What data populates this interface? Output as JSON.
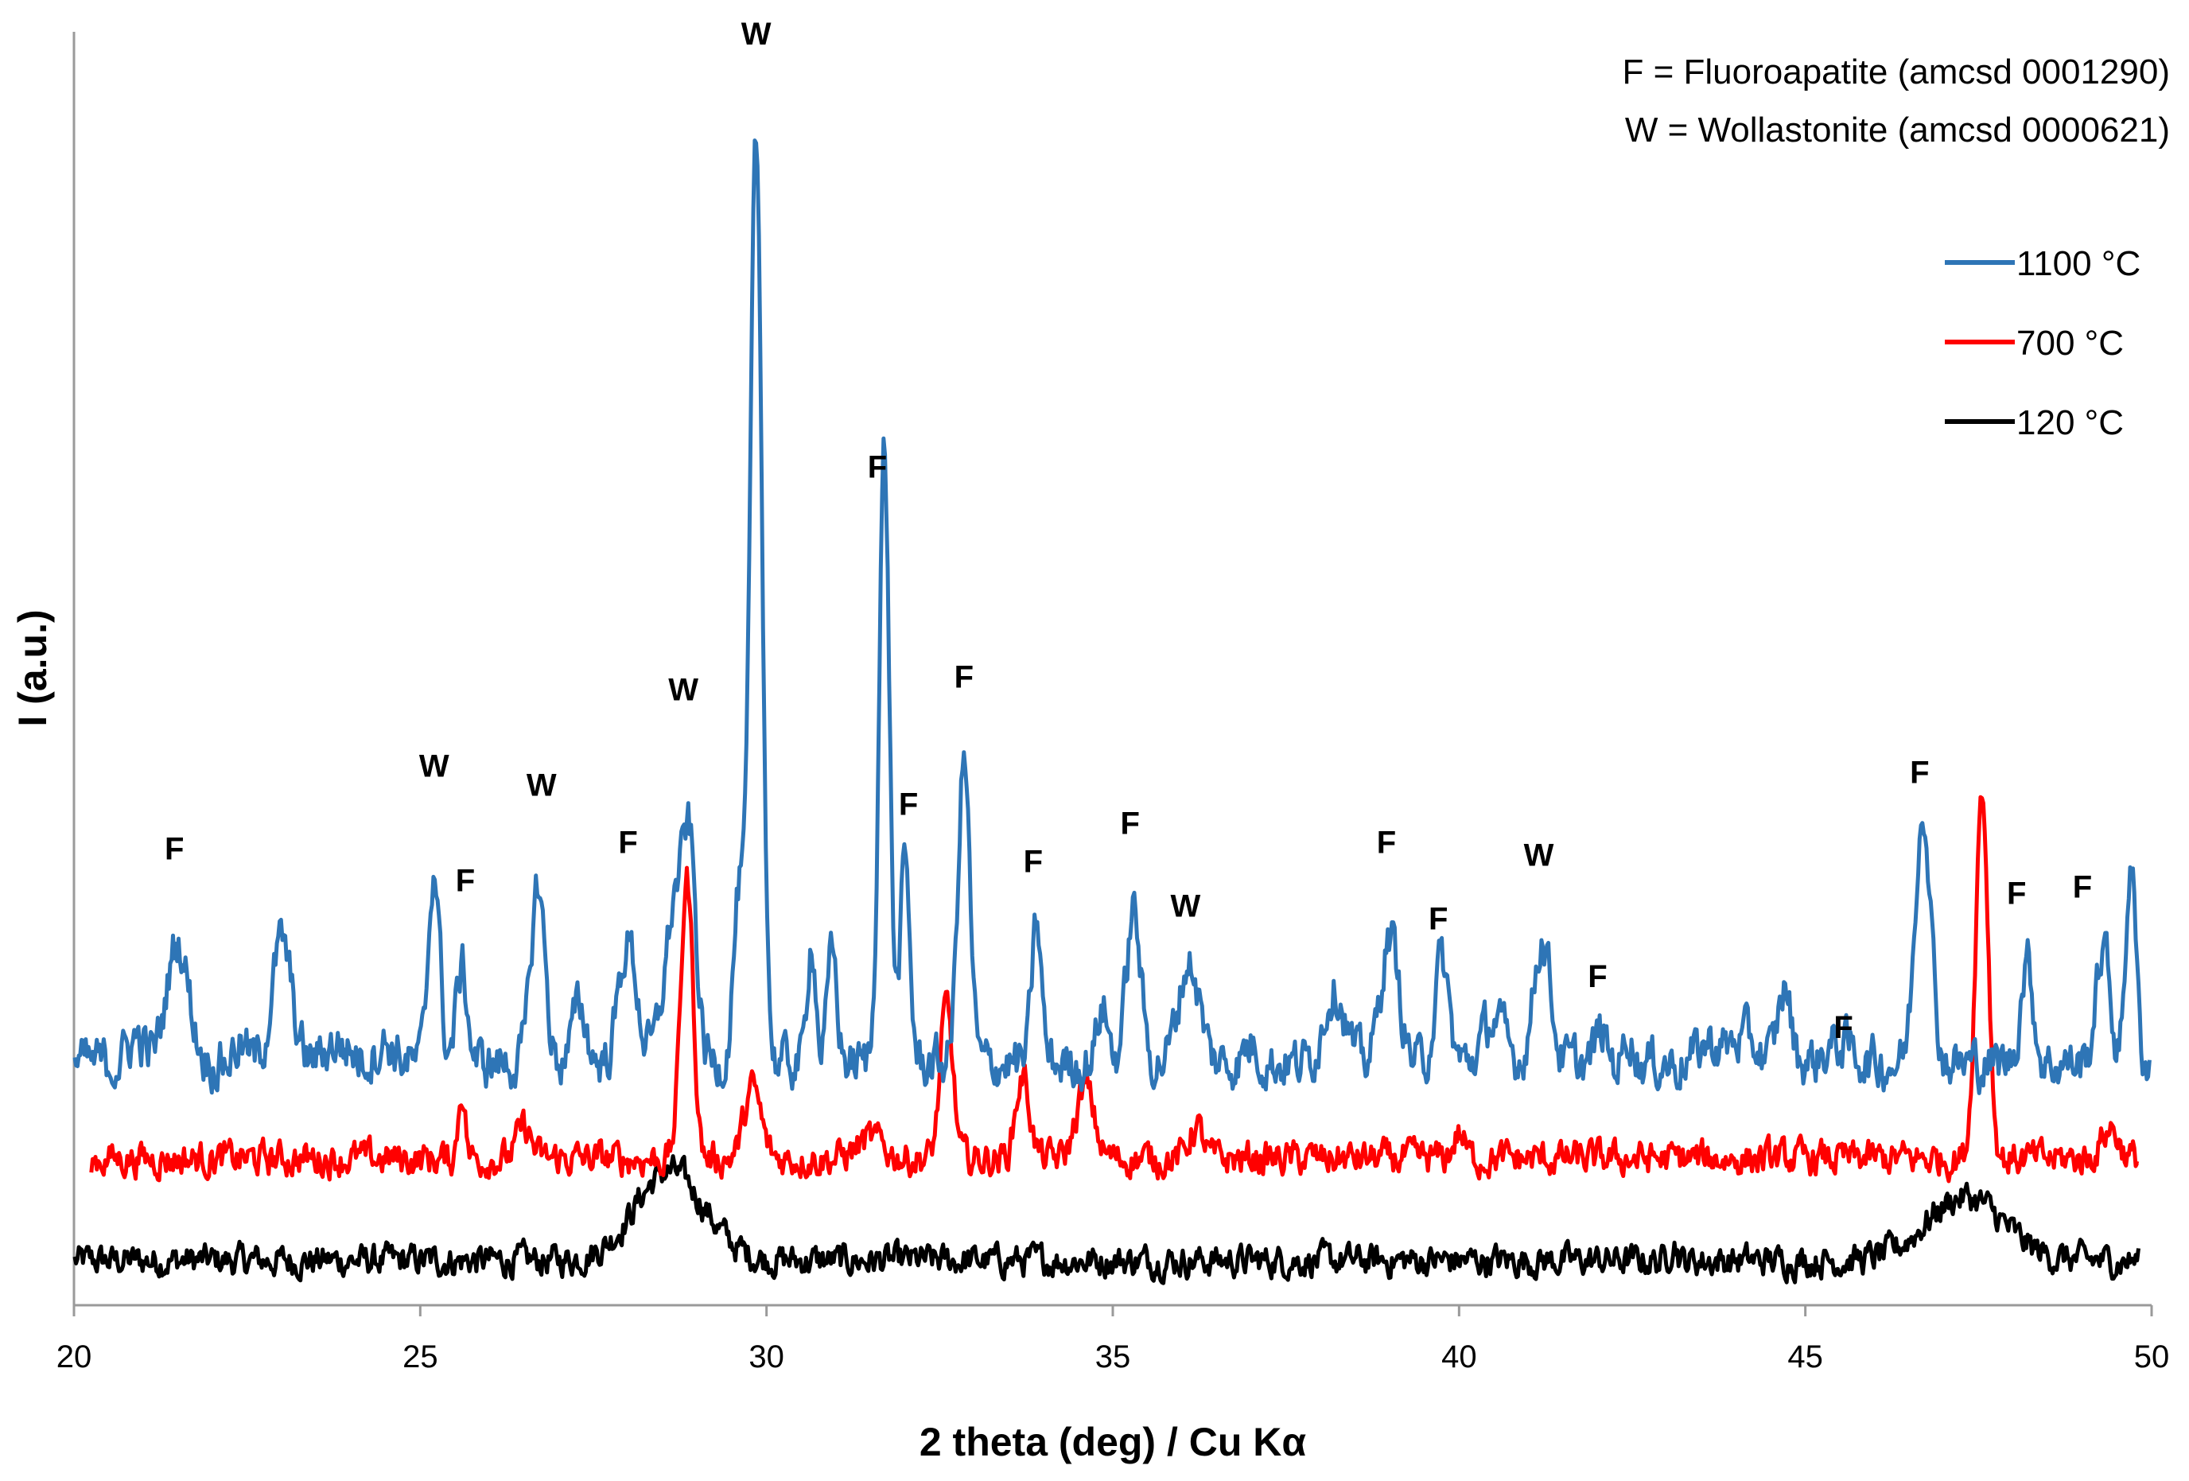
{
  "chart_data": {
    "type": "line",
    "title": "",
    "xlabel": "2 theta (deg) / Cu Kα",
    "ylabel": "I (a.u.)",
    "xlim": [
      20,
      50
    ],
    "ylim": [
      0,
      100
    ],
    "x_ticks": [
      20,
      25,
      30,
      35,
      40,
      45,
      50
    ],
    "x_tick_labels": [
      "20",
      "25",
      "30",
      "35",
      "40",
      "45",
      "50"
    ],
    "grid": false,
    "legend_position": "right",
    "notes": [
      "F = Fluoroapatite (amcsd 0001290)",
      "W = Wollastonite (amcsd 0000621)"
    ],
    "series": [
      {
        "name": "1100 °C",
        "color": "#2e75b6",
        "baseline": 19,
        "noise": 1.6,
        "peaks": [
          [
            20.9,
            2,
            0.12
          ],
          [
            21.5,
            9.5,
            0.16
          ],
          [
            22.4,
            1.5,
            0.1
          ],
          [
            23.0,
            9.5,
            0.14
          ],
          [
            23.8,
            1.5,
            0.2
          ],
          [
            24.5,
            1.5,
            0.15
          ],
          [
            25.2,
            15.5,
            0.08
          ],
          [
            25.6,
            7.5,
            0.08
          ],
          [
            26.7,
            14,
            0.1
          ],
          [
            27.3,
            4.5,
            0.1
          ],
          [
            28.0,
            9.5,
            0.13
          ],
          [
            28.7,
            13,
            0.16
          ],
          [
            28.9,
            12,
            0.09
          ],
          [
            29.6,
            13,
            0.08
          ],
          [
            29.85,
            72,
            0.085
          ],
          [
            30.65,
            10,
            0.06
          ],
          [
            30.95,
            8.5,
            0.07
          ],
          [
            31.7,
            48,
            0.075
          ],
          [
            32.0,
            15.5,
            0.07
          ],
          [
            32.85,
            24,
            0.085
          ],
          [
            33.9,
            11,
            0.07
          ],
          [
            34.85,
            4.5,
            0.08
          ],
          [
            35.3,
            12,
            0.1
          ],
          [
            36.1,
            8,
            0.15
          ],
          [
            37.0,
            1.5,
            0.1
          ],
          [
            38.2,
            6,
            0.15
          ],
          [
            39.0,
            10,
            0.13
          ],
          [
            39.75,
            8,
            0.1
          ],
          [
            40.5,
            3.5,
            0.15
          ],
          [
            41.2,
            10,
            0.12
          ],
          [
            42.05,
            2.5,
            0.08
          ],
          [
            42.45,
            2.5,
            0.06
          ],
          [
            43.6,
            1.5,
            0.15
          ],
          [
            44.1,
            2,
            0.2
          ],
          [
            44.7,
            6,
            0.09
          ],
          [
            45.5,
            1.5,
            0.2
          ],
          [
            46.7,
            20.5,
            0.11
          ],
          [
            48.2,
            8,
            0.09
          ],
          [
            49.3,
            9,
            0.1
          ],
          [
            49.7,
            16,
            0.07
          ]
        ]
      },
      {
        "name": "700 °C",
        "color": "#ff0000",
        "baseline": 11.5,
        "noise": 1.1,
        "peaks": [
          [
            25.6,
            5.5,
            0.05
          ],
          [
            26.5,
            2.5,
            0.1
          ],
          [
            28.85,
            22,
            0.09
          ],
          [
            29.8,
            5.5,
            0.12
          ],
          [
            31.5,
            1.5,
            0.2
          ],
          [
            32.6,
            12,
            0.09
          ],
          [
            33.7,
            6.5,
            0.1
          ],
          [
            34.6,
            5.5,
            0.13
          ],
          [
            36.2,
            2.5,
            0.1
          ],
          [
            40.0,
            2,
            0.08
          ],
          [
            47.55,
            29,
            0.09
          ],
          [
            49.4,
            2.5,
            0.12
          ]
        ]
      },
      {
        "name": "120 °C",
        "color": "#000000",
        "baseline": 3.5,
        "noise": 1.0,
        "peaks": [
          [
            28.6,
            7,
            0.5
          ],
          [
            43.1,
            1.5,
            0.05
          ],
          [
            47.3,
            5,
            0.55
          ]
        ]
      }
    ],
    "peak_annotations": [
      {
        "label": "F",
        "x": 21.45,
        "y": 35
      },
      {
        "label": "W",
        "x": 25.2,
        "y": 41.5
      },
      {
        "label": "F",
        "x": 25.65,
        "y": 32.5
      },
      {
        "label": "W",
        "x": 26.75,
        "y": 40
      },
      {
        "label": "F",
        "x": 28.0,
        "y": 35.5
      },
      {
        "label": "W",
        "x": 28.8,
        "y": 47.5
      },
      {
        "label": "W",
        "x": 29.85,
        "y": 99
      },
      {
        "label": "F",
        "x": 31.6,
        "y": 65
      },
      {
        "label": "F",
        "x": 32.05,
        "y": 38.5
      },
      {
        "label": "F",
        "x": 32.85,
        "y": 48.5
      },
      {
        "label": "F",
        "x": 33.85,
        "y": 34
      },
      {
        "label": "F",
        "x": 35.25,
        "y": 37
      },
      {
        "label": "W",
        "x": 36.05,
        "y": 30.5
      },
      {
        "label": "F",
        "x": 38.95,
        "y": 35.5
      },
      {
        "label": "F",
        "x": 39.7,
        "y": 29.5
      },
      {
        "label": "W",
        "x": 41.15,
        "y": 34.5
      },
      {
        "label": "F",
        "x": 42.0,
        "y": 25
      },
      {
        "label": "F",
        "x": 45.55,
        "y": 21
      },
      {
        "label": "F",
        "x": 46.65,
        "y": 41
      },
      {
        "label": "F",
        "x": 48.05,
        "y": 31.5
      },
      {
        "label": "F",
        "x": 49.0,
        "y": 32
      }
    ]
  }
}
